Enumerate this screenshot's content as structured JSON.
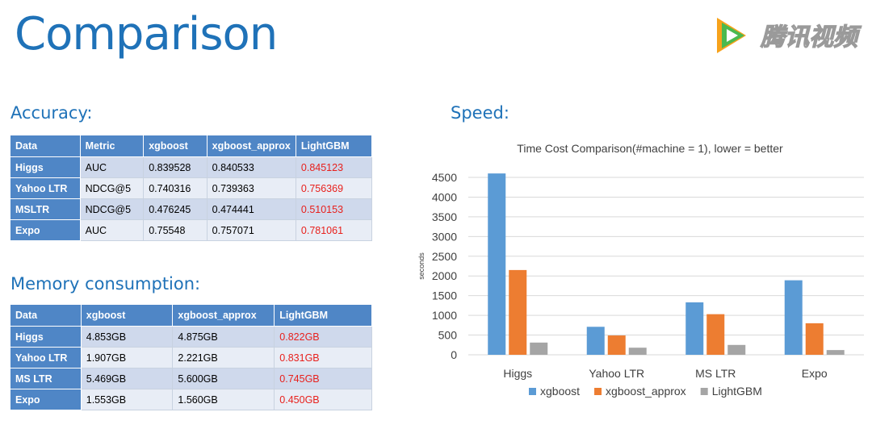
{
  "page": {
    "title": "Comparison",
    "logo_text": "腾讯视频"
  },
  "accuracy": {
    "heading": "Accuracy:",
    "columns": [
      "Data",
      "Metric",
      "xgboost",
      "xgboost_approx",
      "LightGBM"
    ],
    "rows": [
      [
        "Higgs",
        "AUC",
        "0.839528",
        "0.840533",
        "0.845123"
      ],
      [
        "Yahoo LTR",
        "NDCG@5",
        "0.740316",
        "0.739363",
        "0.756369"
      ],
      [
        "MSLTR",
        "NDCG@5",
        "0.476245",
        "0.474441",
        "0.510153"
      ],
      [
        "Expo",
        "AUC",
        "0.75548",
        "0.757071",
        "0.781061"
      ]
    ]
  },
  "memory": {
    "heading": "Memory consumption:",
    "columns": [
      "Data",
      "xgboost",
      "xgboost_approx",
      "LightGBM"
    ],
    "rows": [
      [
        "Higgs",
        "4.853GB",
        "4.875GB",
        "0.822GB"
      ],
      [
        "Yahoo LTR",
        "1.907GB",
        "2.221GB",
        "0.831GB"
      ],
      [
        "MS LTR",
        "5.469GB",
        "5.600GB",
        "0.745GB"
      ],
      [
        "Expo",
        "1.553GB",
        "1.560GB",
        "0.450GB"
      ]
    ]
  },
  "speed": {
    "heading": "Speed:"
  },
  "colors": {
    "xgboost": "#5b9bd5",
    "xgboost_approx": "#ed7d31",
    "LightGBM": "#a5a5a5",
    "highlight": "#e8201c",
    "header": "#4f86c6",
    "title": "#1f72b8"
  },
  "chart_data": {
    "type": "bar",
    "title": "Time Cost Comparison(#machine = 1), lower = better",
    "xlabel": "",
    "ylabel": "seconds",
    "ylim": [
      0,
      4500
    ],
    "yticks": [
      0,
      500,
      1000,
      1500,
      2000,
      2500,
      3000,
      3500,
      4000,
      4500
    ],
    "categories": [
      "Higgs",
      "Yahoo LTR",
      "MS LTR",
      "Expo"
    ],
    "series": [
      {
        "name": "xgboost",
        "values": [
          4600,
          710,
          1330,
          1890
        ]
      },
      {
        "name": "xgboost_approx",
        "values": [
          2150,
          490,
          1030,
          800
        ]
      },
      {
        "name": "LightGBM",
        "values": [
          310,
          180,
          250,
          120
        ]
      }
    ],
    "legend_position": "bottom",
    "grid": true
  }
}
